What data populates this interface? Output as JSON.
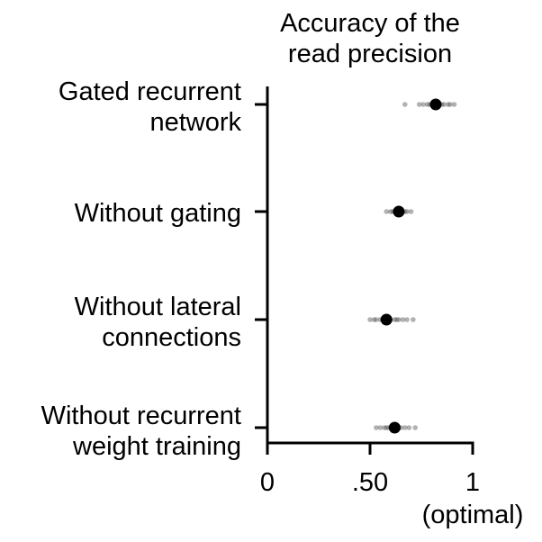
{
  "chart_data": {
    "type": "scatter",
    "title_lines": [
      "Accuracy of the",
      "read precision"
    ],
    "xlim": [
      0,
      1
    ],
    "x_ticks": [
      {
        "value": 0,
        "label": "0"
      },
      {
        "value": 0.5,
        "label": ".50"
      },
      {
        "value": 1,
        "label": "1"
      }
    ],
    "x_note": "(optimal)",
    "categories": [
      {
        "label_lines": [
          "Gated recurrent",
          "network"
        ],
        "mean": 0.82,
        "samples": [
          0.67,
          0.74,
          0.76,
          0.78,
          0.79,
          0.8,
          0.81,
          0.83,
          0.84,
          0.85,
          0.86,
          0.88,
          0.89,
          0.91
        ]
      },
      {
        "label_lines": [
          "Without gating"
        ],
        "mean": 0.64,
        "samples": [
          0.58,
          0.6,
          0.61,
          0.62,
          0.63,
          0.64,
          0.65,
          0.66,
          0.67,
          0.68,
          0.7
        ]
      },
      {
        "label_lines": [
          "Without lateral",
          "connections"
        ],
        "mean": 0.58,
        "samples": [
          0.5,
          0.52,
          0.53,
          0.55,
          0.56,
          0.57,
          0.58,
          0.59,
          0.6,
          0.62,
          0.63,
          0.64,
          0.66,
          0.68,
          0.71
        ]
      },
      {
        "label_lines": [
          "Without recurrent",
          "weight training"
        ],
        "mean": 0.62,
        "samples": [
          0.53,
          0.55,
          0.57,
          0.58,
          0.59,
          0.6,
          0.61,
          0.62,
          0.63,
          0.64,
          0.65,
          0.67,
          0.69,
          0.72
        ]
      }
    ],
    "colors": {
      "mean": "#000000",
      "samples": "#555555",
      "axis": "#000000"
    }
  }
}
